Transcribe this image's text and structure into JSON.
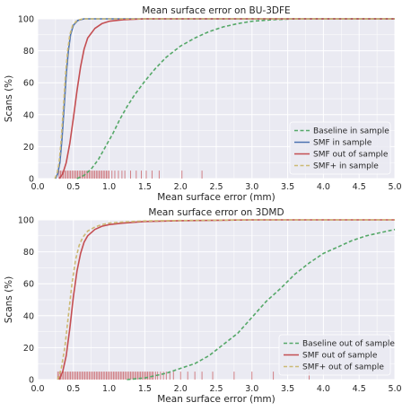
{
  "chart_data": [
    {
      "type": "line",
      "title": "Mean surface error on BU-3DFE",
      "xlabel": "Mean surface error (mm)",
      "ylabel": "Scans (%)",
      "xlim": [
        0.0,
        5.0
      ],
      "ylim": [
        0,
        100
      ],
      "xticks": [
        "0.0",
        "0.5",
        "1.0",
        "1.5",
        "2.0",
        "2.5",
        "3.0",
        "3.5",
        "4.0",
        "4.5",
        "5.0"
      ],
      "yticks": [
        "0",
        "20",
        "40",
        "60",
        "80",
        "100"
      ],
      "grid": true,
      "legend_position": "bottom-right",
      "series": [
        {
          "name": "Baseline in sample",
          "color": "#55a868",
          "dash": true,
          "points": [
            [
              0.55,
              0
            ],
            [
              0.65,
              2
            ],
            [
              0.75,
              6
            ],
            [
              0.85,
              12
            ],
            [
              0.95,
              20
            ],
            [
              1.05,
              28
            ],
            [
              1.15,
              37
            ],
            [
              1.25,
              45
            ],
            [
              1.35,
              52
            ],
            [
              1.5,
              61
            ],
            [
              1.65,
              69
            ],
            [
              1.8,
              76
            ],
            [
              2.0,
              83
            ],
            [
              2.2,
              88
            ],
            [
              2.4,
              92
            ],
            [
              2.6,
              95
            ],
            [
              2.8,
              97
            ],
            [
              3.0,
              98.5
            ],
            [
              3.3,
              99.5
            ],
            [
              3.6,
              100
            ],
            [
              5.0,
              100
            ]
          ]
        },
        {
          "name": "SMF in sample",
          "color": "#4c72b0",
          "dash": false,
          "points": [
            [
              0.25,
              0
            ],
            [
              0.28,
              3
            ],
            [
              0.31,
              10
            ],
            [
              0.34,
              25
            ],
            [
              0.37,
              45
            ],
            [
              0.4,
              65
            ],
            [
              0.43,
              80
            ],
            [
              0.46,
              90
            ],
            [
              0.5,
              96
            ],
            [
              0.56,
              99
            ],
            [
              0.65,
              100
            ],
            [
              5.0,
              100
            ]
          ]
        },
        {
          "name": "SMF out of sample",
          "color": "#c44e52",
          "dash": false,
          "points": [
            [
              0.3,
              0
            ],
            [
              0.35,
              3
            ],
            [
              0.4,
              10
            ],
            [
              0.45,
              22
            ],
            [
              0.5,
              38
            ],
            [
              0.55,
              55
            ],
            [
              0.6,
              70
            ],
            [
              0.65,
              81
            ],
            [
              0.7,
              88
            ],
            [
              0.8,
              94
            ],
            [
              0.9,
              97
            ],
            [
              1.0,
              98.5
            ],
            [
              1.2,
              99.5
            ],
            [
              1.5,
              100
            ],
            [
              5.0,
              100
            ]
          ]
        },
        {
          "name": "SMF+ in sample",
          "color": "#ccb974",
          "dash": true,
          "points": [
            [
              0.24,
              0
            ],
            [
              0.27,
              3
            ],
            [
              0.3,
              10
            ],
            [
              0.33,
              25
            ],
            [
              0.36,
              45
            ],
            [
              0.39,
              65
            ],
            [
              0.42,
              80
            ],
            [
              0.45,
              90
            ],
            [
              0.49,
              96
            ],
            [
              0.55,
              99
            ],
            [
              0.63,
              100
            ],
            [
              5.0,
              100
            ]
          ]
        }
      ],
      "rug": {
        "color": "#c44e52",
        "height": 5,
        "x": [
          0.3,
          0.32,
          0.34,
          0.36,
          0.38,
          0.4,
          0.42,
          0.44,
          0.46,
          0.48,
          0.5,
          0.52,
          0.54,
          0.56,
          0.58,
          0.6,
          0.62,
          0.64,
          0.66,
          0.68,
          0.7,
          0.72,
          0.74,
          0.76,
          0.78,
          0.8,
          0.82,
          0.84,
          0.86,
          0.88,
          0.9,
          0.92,
          0.94,
          0.96,
          0.98,
          1.0,
          1.04,
          1.08,
          1.13,
          1.18,
          1.22,
          1.3,
          1.38,
          1.45,
          1.52,
          1.6,
          1.7,
          2.02,
          2.3
        ]
      }
    },
    {
      "type": "line",
      "title": "Mean surface error on 3DMD",
      "xlabel": "Mean surface error (mm)",
      "ylabel": "Scans (%)",
      "xlim": [
        0.0,
        5.0
      ],
      "ylim": [
        0,
        100
      ],
      "xticks": [
        "0.0",
        "0.5",
        "1.0",
        "1.5",
        "2.0",
        "2.5",
        "3.0",
        "3.5",
        "4.0",
        "4.5",
        "5.0"
      ],
      "yticks": [
        "0",
        "20",
        "40",
        "60",
        "80",
        "100"
      ],
      "grid": true,
      "legend_position": "bottom-right",
      "series": [
        {
          "name": "Baseline out of sample",
          "color": "#55a868",
          "dash": true,
          "points": [
            [
              1.25,
              0
            ],
            [
              1.5,
              1
            ],
            [
              1.8,
              4
            ],
            [
              2.0,
              7
            ],
            [
              2.2,
              10
            ],
            [
              2.4,
              15
            ],
            [
              2.6,
              22
            ],
            [
              2.8,
              29
            ],
            [
              3.0,
              39
            ],
            [
              3.2,
              49
            ],
            [
              3.4,
              57
            ],
            [
              3.6,
              66
            ],
            [
              3.8,
              73
            ],
            [
              4.0,
              79
            ],
            [
              4.2,
              83
            ],
            [
              4.4,
              87
            ],
            [
              4.6,
              90
            ],
            [
              4.8,
              92
            ],
            [
              5.0,
              94
            ]
          ]
        },
        {
          "name": "SMF out of sample",
          "color": "#c44e52",
          "dash": false,
          "points": [
            [
              0.3,
              0
            ],
            [
              0.35,
              5
            ],
            [
              0.4,
              15
            ],
            [
              0.45,
              32
            ],
            [
              0.5,
              52
            ],
            [
              0.55,
              68
            ],
            [
              0.6,
              79
            ],
            [
              0.65,
              86
            ],
            [
              0.7,
              90
            ],
            [
              0.8,
              94
            ],
            [
              0.9,
              96
            ],
            [
              1.0,
              97
            ],
            [
              1.2,
              98
            ],
            [
              1.5,
              99
            ],
            [
              2.0,
              99.5
            ],
            [
              3.0,
              100
            ],
            [
              5.0,
              100
            ]
          ]
        },
        {
          "name": "SMF+ out of sample",
          "color": "#ccb974",
          "dash": true,
          "points": [
            [
              0.28,
              0
            ],
            [
              0.33,
              7
            ],
            [
              0.38,
              20
            ],
            [
              0.43,
              40
            ],
            [
              0.48,
              60
            ],
            [
              0.53,
              75
            ],
            [
              0.58,
              84
            ],
            [
              0.63,
              89
            ],
            [
              0.7,
              93
            ],
            [
              0.8,
              95.5
            ],
            [
              0.9,
              97
            ],
            [
              1.0,
              98
            ],
            [
              1.2,
              98.7
            ],
            [
              1.5,
              99.3
            ],
            [
              2.0,
              99.6
            ],
            [
              3.0,
              100
            ],
            [
              5.0,
              100
            ]
          ]
        }
      ],
      "rug": {
        "color": "#c44e52",
        "height": 5,
        "x": [
          0.28,
          0.3,
          0.32,
          0.34,
          0.36,
          0.38,
          0.4,
          0.42,
          0.44,
          0.46,
          0.48,
          0.5,
          0.52,
          0.54,
          0.56,
          0.58,
          0.6,
          0.62,
          0.64,
          0.66,
          0.68,
          0.7,
          0.72,
          0.74,
          0.76,
          0.78,
          0.8,
          0.82,
          0.84,
          0.86,
          0.88,
          0.9,
          0.92,
          0.94,
          0.96,
          0.98,
          1.0,
          1.02,
          1.04,
          1.06,
          1.08,
          1.1,
          1.12,
          1.14,
          1.16,
          1.18,
          1.2,
          1.22,
          1.24,
          1.26,
          1.28,
          1.3,
          1.32,
          1.34,
          1.36,
          1.38,
          1.4,
          1.42,
          1.44,
          1.46,
          1.48,
          1.5,
          1.52,
          1.54,
          1.56,
          1.58,
          1.6,
          1.62,
          1.65,
          1.68,
          1.72,
          1.76,
          1.8,
          1.85,
          1.9,
          2.0,
          2.1,
          2.2,
          2.3,
          2.45,
          2.75,
          3.0,
          3.3,
          3.8
        ]
      }
    }
  ]
}
